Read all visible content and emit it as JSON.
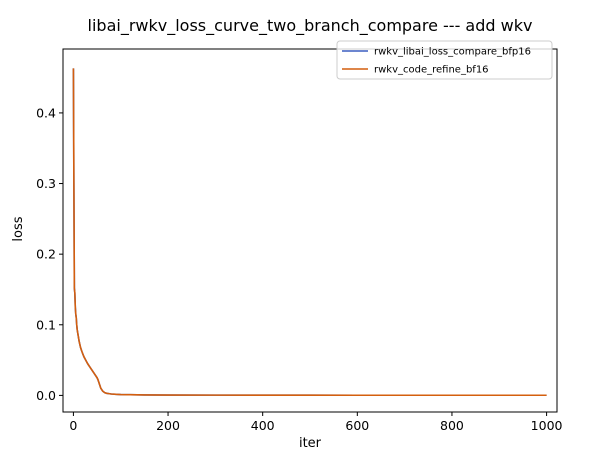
{
  "chart_data": {
    "type": "line",
    "title": "libai_rwkv_loss_curve_two_branch_compare --- add wkv",
    "xlabel": "iter",
    "ylabel": "loss",
    "xlim": [
      -22,
      1022
    ],
    "ylim": [
      -0.0235,
      0.4905
    ],
    "x_ticks": [
      {
        "value": 0,
        "label": "0"
      },
      {
        "value": 200,
        "label": "200"
      },
      {
        "value": 400,
        "label": "400"
      },
      {
        "value": 600,
        "label": "600"
      },
      {
        "value": 800,
        "label": "800"
      },
      {
        "value": 1000,
        "label": "1000"
      }
    ],
    "y_ticks": [
      {
        "value": 0.0,
        "label": "0.0"
      },
      {
        "value": 0.1,
        "label": "0.1"
      },
      {
        "value": 0.2,
        "label": "0.2"
      },
      {
        "value": 0.3,
        "label": "0.3"
      },
      {
        "value": 0.4,
        "label": "0.4"
      }
    ],
    "grid": false,
    "legend_position": "top-right",
    "series": [
      {
        "name": "rwkv_libai_loss_compare_bfp16",
        "color": "#3b5fc0",
        "x": [
          0,
          1,
          2,
          3,
          4,
          5,
          6,
          7,
          8,
          10,
          12,
          15,
          18,
          22,
          26,
          30,
          35,
          40,
          45,
          50,
          52,
          55,
          58,
          62,
          66,
          70,
          75,
          80,
          90,
          100,
          120,
          150,
          200,
          300,
          400,
          500,
          600,
          700,
          800,
          900,
          1000
        ],
        "y": [
          0.463,
          0.3,
          0.152,
          0.145,
          0.125,
          0.115,
          0.11,
          0.1,
          0.093,
          0.085,
          0.077,
          0.068,
          0.062,
          0.055,
          0.05,
          0.045,
          0.04,
          0.035,
          0.03,
          0.025,
          0.022,
          0.016,
          0.01,
          0.006,
          0.004,
          0.003,
          0.0025,
          0.002,
          0.0015,
          0.0012,
          0.001,
          0.0007,
          0.0005,
          0.0004,
          0.0003,
          0.0003,
          0.0002,
          0.0002,
          0.0002,
          0.0002,
          0.0002
        ]
      },
      {
        "name": "rwkv_code_refine_bf16",
        "color": "#d45f0e",
        "x": [
          0,
          1,
          2,
          3,
          4,
          5,
          6,
          7,
          8,
          10,
          12,
          15,
          18,
          22,
          26,
          30,
          35,
          40,
          45,
          50,
          52,
          55,
          58,
          62,
          66,
          70,
          75,
          80,
          90,
          100,
          120,
          150,
          200,
          300,
          400,
          500,
          600,
          700,
          800,
          900,
          1000
        ],
        "y": [
          0.463,
          0.3,
          0.152,
          0.145,
          0.125,
          0.115,
          0.11,
          0.1,
          0.093,
          0.085,
          0.077,
          0.068,
          0.062,
          0.055,
          0.05,
          0.045,
          0.04,
          0.035,
          0.03,
          0.025,
          0.022,
          0.016,
          0.01,
          0.006,
          0.004,
          0.003,
          0.0025,
          0.002,
          0.0015,
          0.0012,
          0.001,
          0.0007,
          0.0005,
          0.0004,
          0.0003,
          0.0003,
          0.0002,
          0.0002,
          0.0002,
          0.0002,
          0.0002
        ]
      }
    ]
  }
}
